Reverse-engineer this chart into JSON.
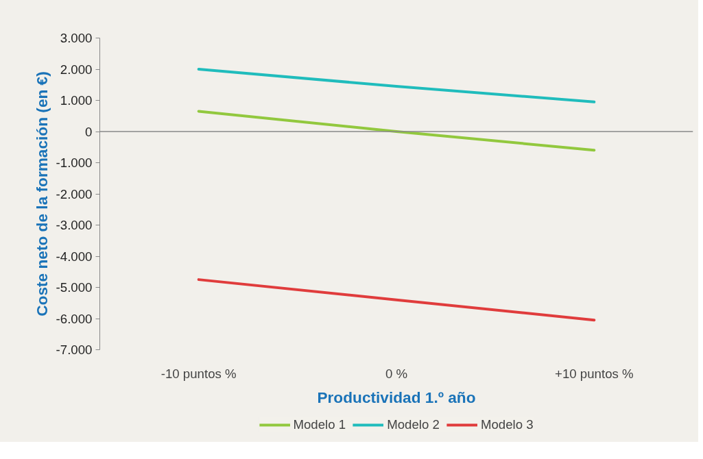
{
  "chart_data": {
    "type": "line",
    "xlabel": "Productividad 1.º año",
    "ylabel": "Coste neto de la formación (en €)",
    "categories": [
      "-10 puntos %",
      "0 %",
      "+10 puntos %"
    ],
    "series": [
      {
        "name": "Modelo 1",
        "color": "#92c83e",
        "values": [
          650,
          0,
          -600
        ]
      },
      {
        "name": "Modelo 2",
        "color": "#20bcbc",
        "values": [
          2000,
          1450,
          950
        ]
      },
      {
        "name": "Modelo 3",
        "color": "#e03c3c",
        "values": [
          -4750,
          -5400,
          -6050
        ]
      }
    ],
    "ylim": [
      -7000,
      3000
    ],
    "yticks": [
      {
        "value": 3000,
        "label": "3.000"
      },
      {
        "value": 2000,
        "label": "2.000"
      },
      {
        "value": 1000,
        "label": "1.000"
      },
      0,
      {
        "value": -1000,
        "label": "-1.000"
      },
      {
        "value": -2000,
        "label": "-2.000"
      },
      {
        "value": -3000,
        "label": "-3.000"
      },
      {
        "value": -4000,
        "label": "-4.000"
      },
      {
        "value": -5000,
        "label": "-5.000"
      },
      {
        "value": -6000,
        "label": "-6.000"
      },
      {
        "value": -7000,
        "label": "-7.000"
      }
    ],
    "ref_lines": [
      {
        "axis": "y",
        "value": 0,
        "color": "#888888"
      }
    ],
    "grid": false,
    "legend": "bottom",
    "marker": "none",
    "line_style": "solid"
  }
}
